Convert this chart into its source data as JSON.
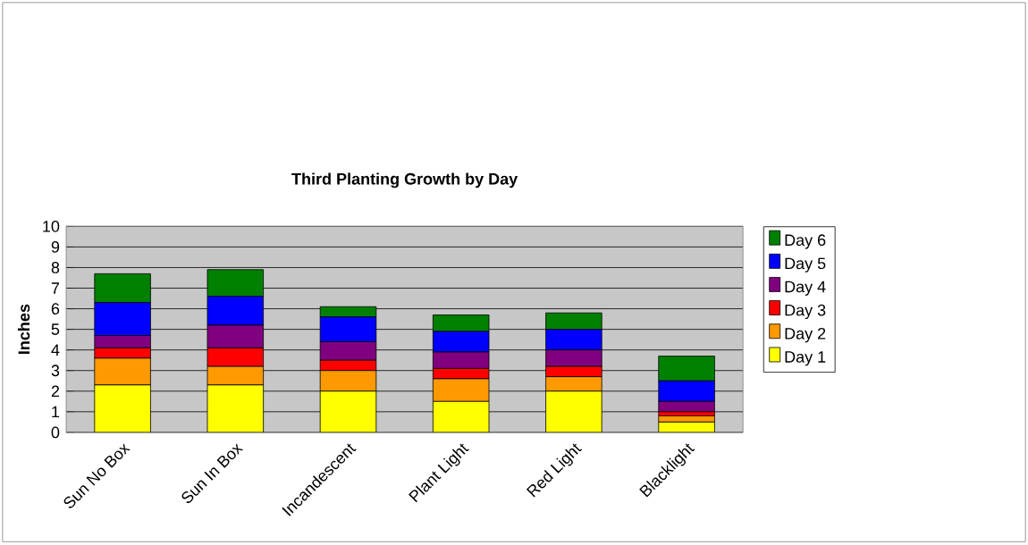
{
  "chart_data": {
    "type": "bar",
    "stacked": true,
    "title": "Third Planting Growth by Day",
    "ylabel": "Inches",
    "categories": [
      "Sun No Box",
      "Sun In Box",
      "Incandescent",
      "Plant Light",
      "Red Light",
      "Blacklight"
    ],
    "series": [
      {
        "name": "Day 1",
        "color": "#ffff00",
        "values": [
          2.3,
          2.3,
          2.0,
          1.5,
          2.0,
          0.5
        ]
      },
      {
        "name": "Day 2",
        "color": "#ff9900",
        "values": [
          1.3,
          0.9,
          1.0,
          1.1,
          0.7,
          0.3
        ]
      },
      {
        "name": "Day 3",
        "color": "#ff0000",
        "values": [
          0.5,
          0.9,
          0.5,
          0.5,
          0.5,
          0.2
        ]
      },
      {
        "name": "Day 4",
        "color": "#800080",
        "values": [
          0.6,
          1.1,
          0.9,
          0.8,
          0.8,
          0.5
        ]
      },
      {
        "name": "Day 5",
        "color": "#0000ff",
        "values": [
          1.6,
          1.4,
          1.2,
          1.0,
          1.0,
          1.0
        ]
      },
      {
        "name": "Day 6",
        "color": "#008000",
        "values": [
          1.4,
          1.3,
          0.5,
          0.8,
          0.8,
          1.2
        ]
      }
    ],
    "ylim": [
      0,
      10
    ],
    "yticks": [
      0,
      1,
      2,
      3,
      4,
      5,
      6,
      7,
      8,
      9,
      10
    ],
    "grid": "y",
    "legend": "right"
  }
}
